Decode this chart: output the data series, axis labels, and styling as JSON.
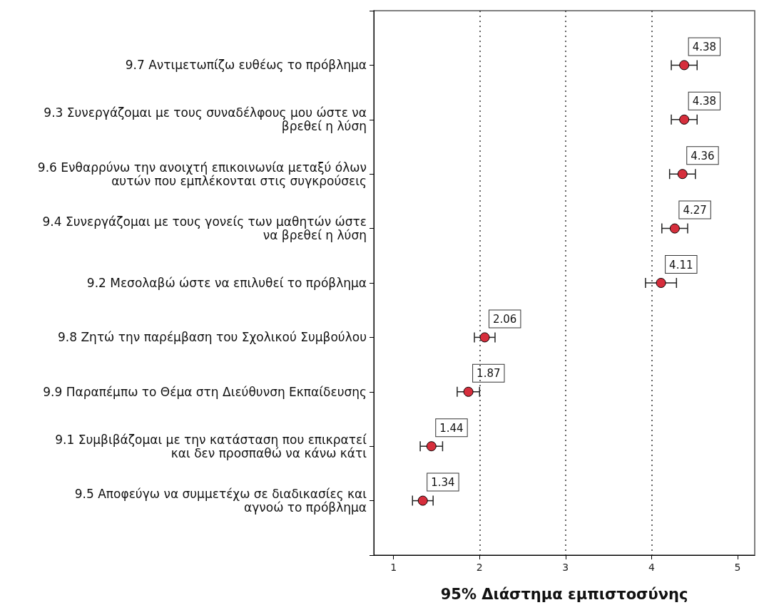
{
  "chart_data": {
    "type": "scatter",
    "orientation": "horizontal",
    "xlabel": "95% Διάστημα εμπιστοσύνης",
    "categories": [
      "9.7 Αντιμετωπίζω ευθέως το πρόβλημα",
      "9.3 Συνεργάζομαι με τους συναδέλφους μου ώστε να\nβρεθεί η λύση",
      "9.6 Ενθαρρύνω την ανοιχτή επικοινωνία μεταξύ όλων\nαυτών που εμπλέκονται στις συγκρούσεις",
      "9.4 Συνεργάζομαι με τους γονείς των μαθητών ώστε\nνα βρεθεί η λύση",
      "9.2 Μεσολαβώ ώστε να επιλυθεί το πρόβλημα",
      "9.8 Ζητώ την παρέμβαση του Σχολικού Συμβούλου",
      "9.9 Παραπέμπω το Θέμα στη Διεύθυνση Εκπαίδευσης",
      "9.1 Συμβιβάζομαι με την κατάσταση που επικρατεί\nκαι δεν προσπαθώ να κάνω κάτι",
      "9.5 Αποφεύγω να συμμετέχω σε διαδικασίες και\nαγνοώ το πρόβλημα"
    ],
    "values": [
      4.38,
      4.38,
      4.36,
      4.27,
      4.11,
      2.06,
      1.87,
      1.44,
      1.34
    ],
    "errors": [
      0.15,
      0.15,
      0.15,
      0.15,
      0.18,
      0.12,
      0.13,
      0.13,
      0.12
    ],
    "color": "#d62e3c",
    "marker": "circle",
    "data_labels": true,
    "xlim": [
      0.77,
      5.2
    ],
    "xticks": [
      1,
      2,
      3,
      4,
      5
    ],
    "ref_lines": [
      {
        "axis": "x",
        "value": 2,
        "line_style": "dotted",
        "color": "#333333"
      },
      {
        "axis": "x",
        "value": 3,
        "line_style": "dotted",
        "color": "#333333"
      },
      {
        "axis": "x",
        "value": 4,
        "line_style": "dotted",
        "color": "#333333"
      }
    ]
  }
}
